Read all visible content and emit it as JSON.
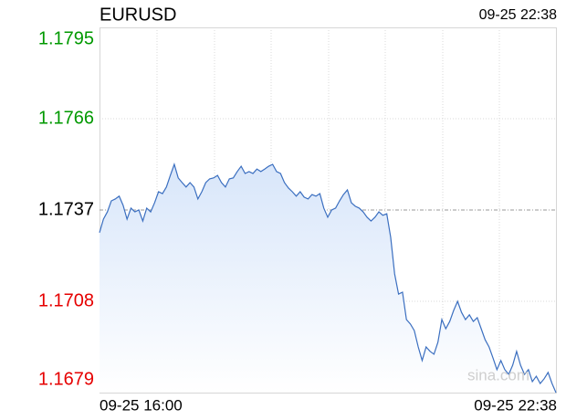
{
  "chart_data": {
    "type": "line",
    "title": "EURUSD",
    "timestamp": "09-25 22:38",
    "watermark": "sina.com",
    "x_labels": [
      "09-25 16:00",
      "09-25 22:38"
    ],
    "ylim": [
      1.1679,
      1.1795
    ],
    "yticks": [
      1.1795,
      1.1766,
      1.1737,
      1.1708,
      1.1679
    ],
    "ytick_colors": [
      "#009900",
      "#009900",
      "#000000",
      "#e60000",
      "#e60000"
    ],
    "reference_line": 1.1737,
    "grid": true,
    "color": "#3b6fc0",
    "values": [
      1.17298,
      1.17341,
      1.17364,
      1.17399,
      1.17405,
      1.17414,
      1.17385,
      1.17341,
      1.17376,
      1.17364,
      1.1737,
      1.17335,
      1.17376,
      1.17364,
      1.17393,
      1.17428,
      1.17422,
      1.17443,
      1.1748,
      1.17515,
      1.17472,
      1.17457,
      1.17443,
      1.17457,
      1.17443,
      1.17405,
      1.17428,
      1.17457,
      1.17469,
      1.17472,
      1.1748,
      1.17457,
      1.17443,
      1.17469,
      1.17472,
      1.17492,
      1.17509,
      1.17486,
      1.17492,
      1.17486,
      1.175,
      1.17492,
      1.175,
      1.17509,
      1.17515,
      1.17492,
      1.17486,
      1.17457,
      1.1744,
      1.17428,
      1.17414,
      1.17428,
      1.17411,
      1.17405,
      1.17419,
      1.17414,
      1.17422,
      1.17376,
      1.17347,
      1.1737,
      1.17376,
      1.17399,
      1.17419,
      1.17434,
      1.17393,
      1.17382,
      1.17376,
      1.17364,
      1.17347,
      1.17335,
      1.17347,
      1.17364,
      1.17353,
      1.17358,
      1.17283,
      1.17167,
      1.17103,
      1.17109,
      1.17022,
      1.17008,
      1.16987,
      1.16935,
      1.16892,
      1.16935,
      1.16921,
      1.16912,
      1.1695,
      1.17022,
      1.16993,
      1.17016,
      1.17051,
      1.1708,
      1.17045,
      1.17022,
      1.17037,
      1.17016,
      1.17028,
      1.16993,
      1.16958,
      1.16935,
      1.169,
      1.16863,
      1.16892,
      1.16863,
      1.16848,
      1.16877,
      1.16921,
      1.16877,
      1.16848,
      1.16863,
      1.16825,
      1.16842,
      1.16819,
      1.16834,
      1.16854,
      1.16819,
      1.1679
    ]
  }
}
